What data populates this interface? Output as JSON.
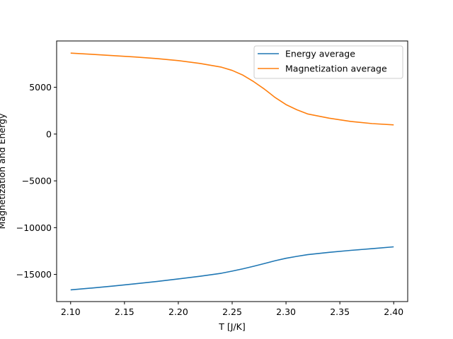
{
  "chart_data": {
    "type": "line",
    "title": "",
    "xlabel": "T [J/K]",
    "ylabel": "Magnetization and Energy",
    "xlim": [
      2.087,
      2.413
    ],
    "ylim": [
      -17900,
      9950
    ],
    "xticks": [
      2.1,
      2.15,
      2.2,
      2.25,
      2.3,
      2.35,
      2.4
    ],
    "xtick_labels": [
      "2.10",
      "2.15",
      "2.20",
      "2.25",
      "2.30",
      "2.35",
      "2.40"
    ],
    "yticks": [
      -15000,
      -10000,
      -5000,
      0,
      5000
    ],
    "ytick_labels": [
      "−15000",
      "−10000",
      "−5000",
      "0",
      "5000"
    ],
    "grid": false,
    "legend_position": "top-right",
    "x": [
      2.1,
      2.12,
      2.14,
      2.16,
      2.18,
      2.2,
      2.22,
      2.24,
      2.25,
      2.26,
      2.27,
      2.28,
      2.29,
      2.3,
      2.31,
      2.32,
      2.34,
      2.36,
      2.38,
      2.4
    ],
    "series": [
      {
        "name": "Energy average",
        "color": "#1f77b4",
        "values": [
          -16650,
          -16450,
          -16230,
          -16000,
          -15760,
          -15480,
          -15200,
          -14870,
          -14650,
          -14400,
          -14130,
          -13830,
          -13530,
          -13270,
          -13070,
          -12890,
          -12640,
          -12430,
          -12250,
          -12050
        ]
      },
      {
        "name": "Magnetization average",
        "color": "#ff7f0e",
        "values": [
          8650,
          8520,
          8380,
          8240,
          8070,
          7850,
          7550,
          7150,
          6800,
          6300,
          5600,
          4800,
          3900,
          3150,
          2600,
          2150,
          1700,
          1350,
          1120,
          980
        ]
      }
    ]
  }
}
